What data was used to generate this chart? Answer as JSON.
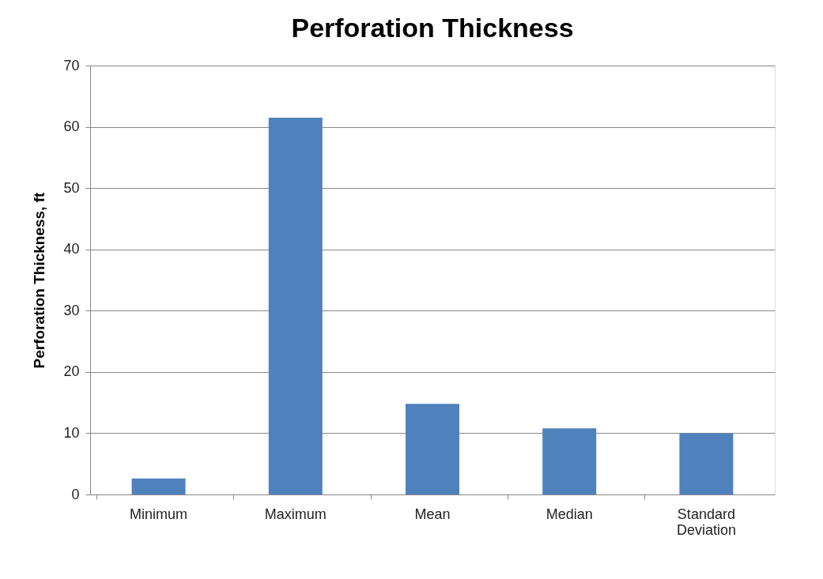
{
  "chart_data": {
    "type": "bar",
    "title": "Perforation Thickness",
    "ylabel": "Perforation Thickness, ft",
    "categories": [
      "Minimum",
      "Maximum",
      "Mean",
      "Median",
      "Standard Deviation"
    ],
    "values": [
      2.6,
      61.5,
      14.8,
      10.8,
      10.0
    ],
    "color": "#4f81bd",
    "ylim": [
      0,
      70
    ],
    "yticks": [
      0,
      10,
      20,
      30,
      40,
      50,
      60,
      70
    ],
    "grid": "y"
  }
}
